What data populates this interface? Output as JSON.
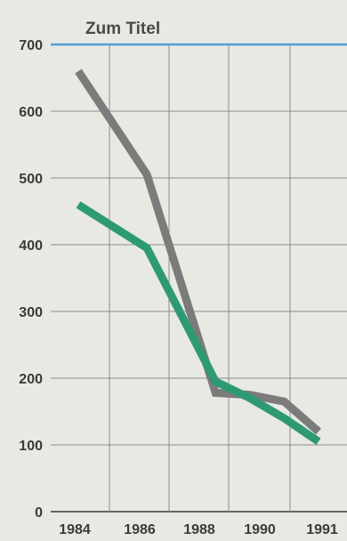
{
  "chart_data": {
    "type": "line",
    "title": "Zum Titel",
    "x": [
      1984,
      1986,
      1988,
      1989,
      1990,
      1991
    ],
    "x_ticks": [
      "1984",
      "1986",
      "1988",
      "1990",
      "1991"
    ],
    "y_ticks": [
      "0",
      "100",
      "200",
      "300",
      "400",
      "500",
      "600",
      "700"
    ],
    "ylim": [
      0,
      700
    ],
    "grid": true,
    "series": [
      {
        "color": "#7b7b7b",
        "values": [
          660,
          505,
          178,
          175,
          165,
          120
        ]
      },
      {
        "color": "#2e9a73",
        "values": [
          460,
          395,
          195,
          170,
          140,
          105
        ]
      }
    ],
    "reference_line": {
      "value": 700,
      "color": "#4a9fd6"
    }
  },
  "colors": {
    "background": "#e9e9e3",
    "grid": "#8a8a8a",
    "axis": "#3a3a3a"
  }
}
